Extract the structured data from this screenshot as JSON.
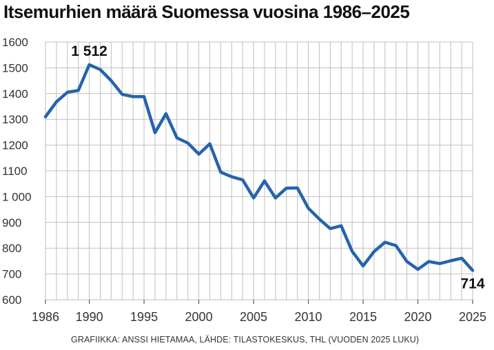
{
  "title": "Itsemurhien määrä Suomessa vuosina 1986–2025",
  "credit": "GRAFIIKKA: ANSSI HIETAMAA, LÄHDE: TILASTOKESKUS, THL (VUODEN 2025 LUKU)",
  "colors": {
    "line": "#2563ad",
    "grid": "#bfbfbf",
    "tick_text": "#333333",
    "annotation_text": "#111111",
    "background": "#ffffff"
  },
  "chart_data": {
    "type": "line",
    "title": "Itsemurhien määrä Suomessa vuosina 1986–2025",
    "xlabel": "",
    "ylabel": "",
    "x": [
      1986,
      1987,
      1988,
      1989,
      1990,
      1991,
      1992,
      1993,
      1994,
      1995,
      1996,
      1997,
      1998,
      1999,
      2000,
      2001,
      2002,
      2003,
      2004,
      2005,
      2006,
      2007,
      2008,
      2009,
      2010,
      2011,
      2012,
      2013,
      2014,
      2015,
      2016,
      2017,
      2018,
      2019,
      2020,
      2021,
      2022,
      2023,
      2024,
      2025
    ],
    "series": [
      {
        "values": [
          1310,
          1368,
          1405,
          1412,
          1512,
          1493,
          1450,
          1397,
          1388,
          1388,
          1248,
          1322,
          1228,
          1208,
          1165,
          1205,
          1095,
          1077,
          1065,
          995,
          1061,
          995,
          1033,
          1034,
          955,
          913,
          876,
          887,
          788,
          731,
          787,
          823,
          810,
          748,
          718,
          748,
          740,
          751,
          761,
          714
        ]
      }
    ],
    "xlim": [
      1986,
      2025
    ],
    "ylim": [
      600,
      1600
    ],
    "xticks": [
      1986,
      1990,
      1995,
      2000,
      2005,
      2010,
      2015,
      2020,
      2025
    ],
    "yticks": [
      600,
      700,
      800,
      900,
      1000,
      1100,
      1200,
      1300,
      1400,
      1500,
      1600
    ],
    "ytick_labels": [
      "600",
      "700",
      "800",
      "900",
      "1 000",
      "1100",
      "1200",
      "1300",
      "1400",
      "1500",
      "1600"
    ],
    "grid": "both",
    "annotations": [
      {
        "x": 1990,
        "y": 1512,
        "text": "1 512",
        "position": "above"
      },
      {
        "x": 2025,
        "y": 714,
        "text": "714",
        "position": "below"
      }
    ]
  }
}
